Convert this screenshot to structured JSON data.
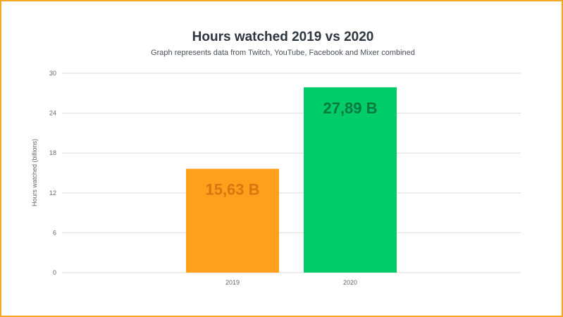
{
  "chart_data": {
    "type": "bar",
    "title": "Hours watched 2019 vs 2020",
    "subtitle": "Graph represents data from Twitch, YouTube, Facebook and Mixer combined",
    "ylabel": "Hours watched (billions)",
    "xlabel": "",
    "categories": [
      "2019",
      "2020"
    ],
    "values": [
      15.63,
      27.89
    ],
    "data_labels": [
      "15,63 B",
      "27,89 B"
    ],
    "bar_colors": [
      "#ff9f1c",
      "#00cc6a"
    ],
    "label_colors": [
      "#d9770e",
      "#067a3f"
    ],
    "ylim": [
      0,
      30
    ],
    "yticks": [
      0,
      6,
      12,
      18,
      24,
      30
    ],
    "grid": true,
    "legend": "none"
  }
}
